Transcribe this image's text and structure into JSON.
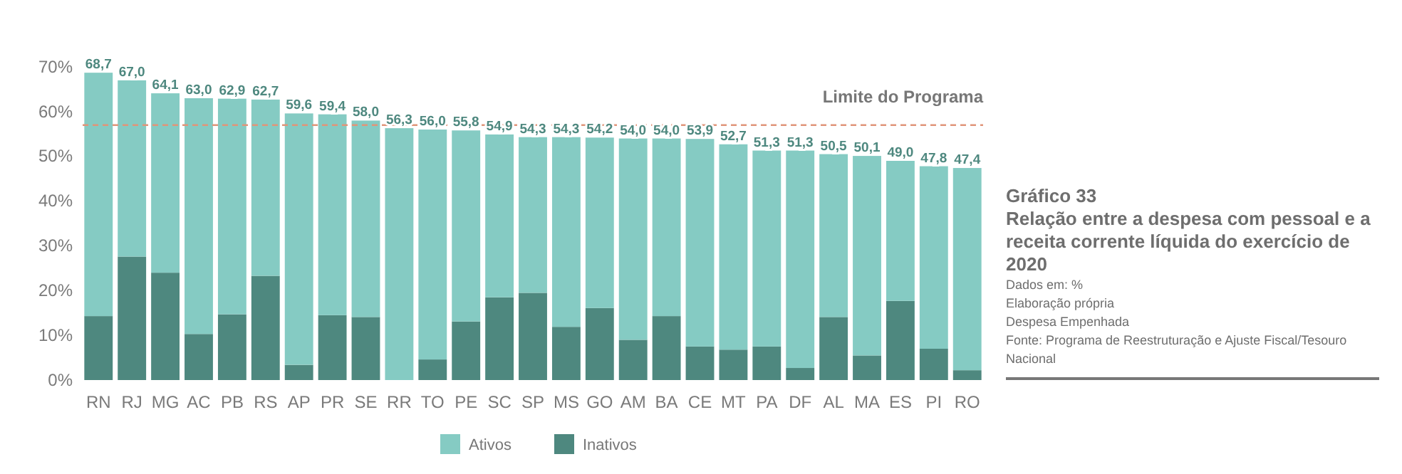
{
  "chart_data": {
    "type": "bar",
    "stacked": true,
    "title": "Gráfico 33",
    "subtitle": "Relação entre a despesa com pessoal e a receita corrente líquida do exercício de 2020",
    "annotations": [
      "Dados em:  %",
      "Elaboração própria",
      "Despesa Empenhada",
      "Fonte: Programa de Reestruturação e Ajuste Fiscal/Tesouro Nacional"
    ],
    "categories": [
      "RN",
      "RJ",
      "MG",
      "AC",
      "PB",
      "RS",
      "AP",
      "PR",
      "SE",
      "RR",
      "TO",
      "PE",
      "SC",
      "SP",
      "MS",
      "GO",
      "AM",
      "BA",
      "CE",
      "MT",
      "PA",
      "DF",
      "AL",
      "MA",
      "ES",
      "PI",
      "RO"
    ],
    "series": [
      {
        "name": "Inativos",
        "color": "#4e887f",
        "values": [
          14.3,
          27.6,
          24.0,
          10.3,
          14.7,
          23.3,
          3.4,
          14.5,
          14.1,
          0,
          4.6,
          13.1,
          18.5,
          19.5,
          11.9,
          16.1,
          9.0,
          14.3,
          7.5,
          6.8,
          7.5,
          2.7,
          14.1,
          5.5,
          17.7,
          7.0,
          2.2
        ]
      },
      {
        "name": "Ativos",
        "color": "#85cbc3",
        "values": [
          54.4,
          39.4,
          40.1,
          52.7,
          48.2,
          39.4,
          56.2,
          44.9,
          43.9,
          56.3,
          51.4,
          42.7,
          36.4,
          34.8,
          42.4,
          38.1,
          45.0,
          39.7,
          46.4,
          45.9,
          43.8,
          48.6,
          36.4,
          44.6,
          31.3,
          40.8,
          45.2
        ]
      }
    ],
    "totals": [
      "68,7",
      "67,0",
      "64,1",
      "63,0",
      "62,9",
      "62,7",
      "59,6",
      "59,4",
      "58,0",
      "56,3",
      "56,0",
      "55,8",
      "54,9",
      "54,3",
      "54,3",
      "54,2",
      "54,0",
      "54,0",
      "53,9",
      "52,7",
      "51,3",
      "51,3",
      "50,5",
      "50,1",
      "49,0",
      "47,8",
      "47,4"
    ],
    "ylim": [
      0,
      70
    ],
    "yticks": [
      {
        "value": 0,
        "label": "0%"
      },
      {
        "value": 10,
        "label": "10%"
      },
      {
        "value": 20,
        "label": "20%"
      },
      {
        "value": 30,
        "label": "30%"
      },
      {
        "value": 40,
        "label": "40%"
      },
      {
        "value": 50,
        "label": "50%"
      },
      {
        "value": 60,
        "label": "60%"
      },
      {
        "value": 70,
        "label": "70%"
      }
    ],
    "ref_lines": [
      {
        "axis": "y",
        "value": 57,
        "label": "Limite do Programa",
        "color": "#e0957a",
        "line_style": "dashed"
      }
    ],
    "grid": false,
    "legend": "bottom"
  }
}
